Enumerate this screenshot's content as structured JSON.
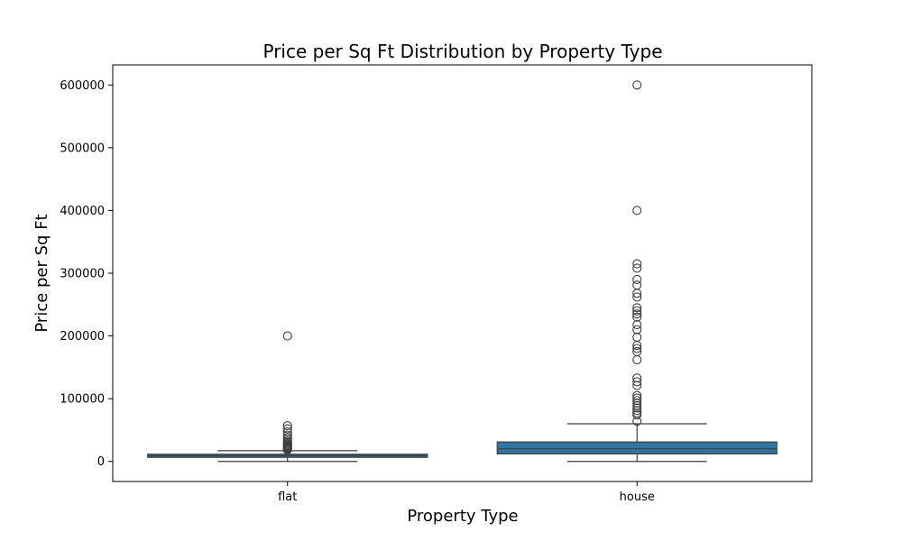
{
  "chart_data": {
    "type": "box",
    "title": "Price per Sq Ft Distribution by Property Type",
    "xlabel": "Property Type",
    "ylabel": "Price per Sq Ft",
    "categories": [
      "flat",
      "house"
    ],
    "ylim": [
      -32000,
      632000
    ],
    "yticks": [
      0,
      100000,
      200000,
      300000,
      400000,
      500000,
      600000
    ],
    "ytick_labels": [
      "0",
      "100000",
      "200000",
      "300000",
      "400000",
      "500000",
      "600000"
    ],
    "grid": false,
    "legend": "none",
    "box_color": "#3274a1",
    "line_color": "#3f3f3f",
    "boxes": [
      {
        "category": "flat",
        "whisker_low": 0,
        "q1": 6500,
        "median": 9000,
        "q3": 11500,
        "whisker_high": 17000,
        "outliers": [
          200000,
          57000,
          52000,
          47000,
          42000,
          38000,
          35000,
          32000,
          30000,
          28000,
          26500,
          25000,
          24000,
          23000,
          22000,
          21000,
          20000,
          19000,
          18500
        ]
      },
      {
        "category": "house",
        "whisker_low": 0,
        "q1": 12000,
        "median": 20000,
        "q3": 31000,
        "whisker_high": 60000,
        "outliers": [
          600000,
          400000,
          315000,
          308000,
          290000,
          281000,
          268000,
          262000,
          245000,
          240000,
          235000,
          230000,
          218000,
          210000,
          198000,
          185000,
          180000,
          175000,
          162000,
          133000,
          127000,
          121000,
          105000,
          101000,
          97000,
          93000,
          89000,
          85000,
          81000,
          77000,
          74000,
          64000
        ]
      }
    ]
  }
}
